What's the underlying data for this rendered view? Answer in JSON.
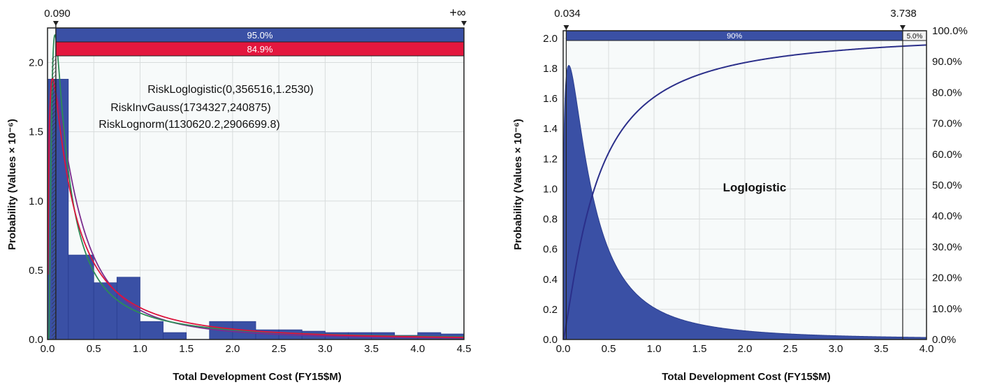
{
  "chart_data": [
    {
      "type": "bar",
      "xlabel": "Total Development Cost (FY15$M)",
      "ylabel": "Probability (Values × 10⁻⁶)",
      "xlim": [
        0,
        4.5
      ],
      "ylim": [
        0,
        2.25
      ],
      "x_ticks": [
        "0.0",
        "0.5",
        "1.0",
        "1.5",
        "2.0",
        "2.5",
        "3.0",
        "3.5",
        "4.0",
        "4.5"
      ],
      "y_ticks": [
        "0.0",
        "0.5",
        "1.0",
        "1.5",
        "2.0"
      ],
      "bins": [
        {
          "x0": 0.0,
          "x1": 0.225,
          "value": 1.88
        },
        {
          "x0": 0.225,
          "x1": 0.5,
          "value": 0.61
        },
        {
          "x0": 0.5,
          "x1": 0.75,
          "value": 0.41
        },
        {
          "x0": 0.75,
          "x1": 1.0,
          "value": 0.45
        },
        {
          "x0": 1.0,
          "x1": 1.25,
          "value": 0.13
        },
        {
          "x0": 1.25,
          "x1": 1.5,
          "value": 0.05
        },
        {
          "x0": 1.5,
          "x1": 1.75,
          "value": 0.0
        },
        {
          "x0": 1.75,
          "x1": 2.0,
          "value": 0.13
        },
        {
          "x0": 2.0,
          "x1": 2.25,
          "value": 0.13
        },
        {
          "x0": 2.25,
          "x1": 2.5,
          "value": 0.07
        },
        {
          "x0": 2.5,
          "x1": 2.75,
          "value": 0.07
        },
        {
          "x0": 2.75,
          "x1": 3.0,
          "value": 0.06
        },
        {
          "x0": 3.0,
          "x1": 3.25,
          "value": 0.05
        },
        {
          "x0": 3.25,
          "x1": 3.5,
          "value": 0.05
        },
        {
          "x0": 3.5,
          "x1": 3.75,
          "value": 0.05
        },
        {
          "x0": 3.75,
          "x1": 4.0,
          "value": 0.03
        },
        {
          "x0": 4.0,
          "x1": 4.25,
          "value": 0.05
        },
        {
          "x0": 4.25,
          "x1": 4.5,
          "value": 0.04
        }
      ],
      "fitted_curves": [
        {
          "label": "RiskLoglogistic(0,356516,1.2530)",
          "color": "#7b2d8e"
        },
        {
          "label": "RiskInvGauss(1734327,240875)",
          "color": "#2e8b57"
        },
        {
          "label": "RiskLognorm(1130620.2,2906699.8)",
          "color": "#dc143c"
        }
      ],
      "delimiters": {
        "left_label": "0.090",
        "right_label": "+∞",
        "left_value": 0.09,
        "bars": [
          {
            "label": "95.0%",
            "color": "#3a50a5"
          },
          {
            "label": "84.9%",
            "color": "#e3173e"
          }
        ]
      },
      "colors": {
        "bars": "#3a50a5",
        "plot_bg": "#f7fafa"
      }
    },
    {
      "type": "area",
      "series_name": "Loglogistic",
      "xlabel": "Total Development Cost (FY15$M)",
      "ylabel": "Probability (Values × 10⁻⁶)",
      "xlim": [
        0,
        4.0
      ],
      "ylim": [
        0,
        2.05
      ],
      "y2lim": [
        0,
        100
      ],
      "x_ticks": [
        "0.0",
        "0.5",
        "1.0",
        "1.5",
        "2.0",
        "2.5",
        "3.0",
        "3.5",
        "4.0"
      ],
      "y_ticks": [
        "0.0",
        "0.2",
        "0.4",
        "0.6",
        "0.8",
        "1.0",
        "1.2",
        "1.4",
        "1.6",
        "1.8",
        "2.0"
      ],
      "y2_ticks": [
        "0.0%",
        "10.0%",
        "20.0%",
        "30.0%",
        "40.0%",
        "50.0%",
        "60.0%",
        "70.0%",
        "80.0%",
        "90.0%",
        "100.0%"
      ],
      "pdf": {
        "alpha": 0.356516,
        "beta": 1.253,
        "peak": 1.82
      },
      "delimiters": {
        "left_label": "0.034",
        "right_label": "3.738",
        "left_value": 0.034,
        "right_value": 3.738,
        "bar_labels": [
          "90%",
          "5.0%"
        ]
      },
      "colors": {
        "fill": "#3a50a5",
        "cdf": "#2b2f8a",
        "plot_bg": "#f7fafa"
      }
    }
  ]
}
